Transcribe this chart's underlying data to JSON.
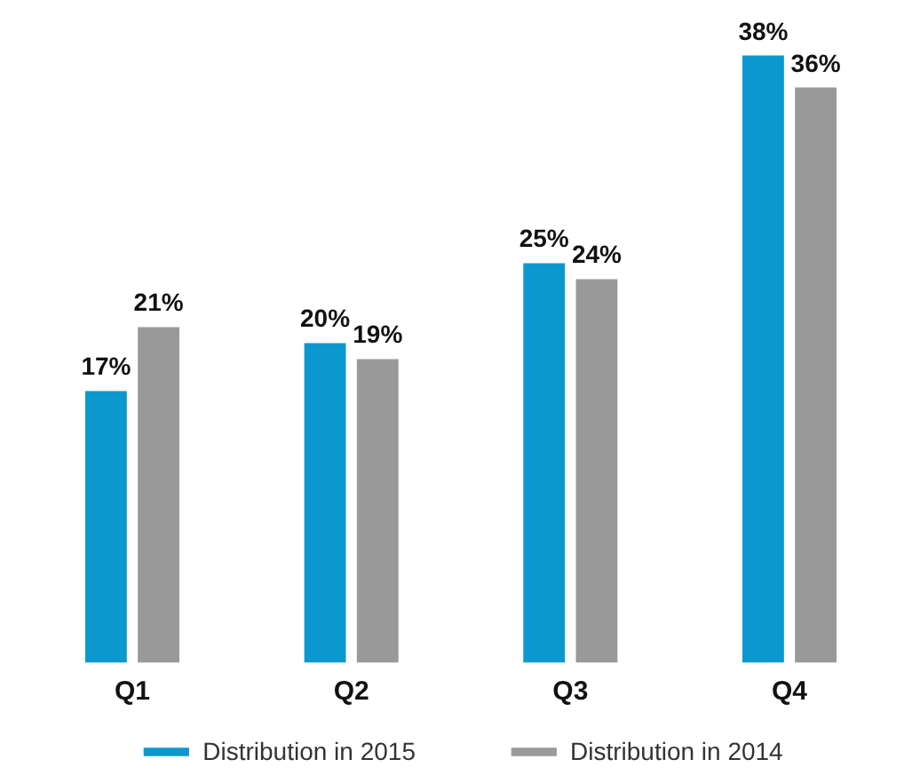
{
  "chart_data": {
    "type": "bar",
    "categories": [
      "Q1",
      "Q2",
      "Q3",
      "Q4"
    ],
    "series": [
      {
        "name": "Distribution in 2015",
        "color": "#0b98cf",
        "values": [
          17,
          20,
          25,
          38
        ],
        "value_labels": [
          "17%",
          "20%",
          "25%",
          "38%"
        ]
      },
      {
        "name": "Distribution in 2014",
        "color": "#999999",
        "values": [
          21,
          19,
          24,
          36
        ],
        "value_labels": [
          "21%",
          "19%",
          "24%",
          "36%"
        ]
      }
    ],
    "legend": "bottom"
  }
}
